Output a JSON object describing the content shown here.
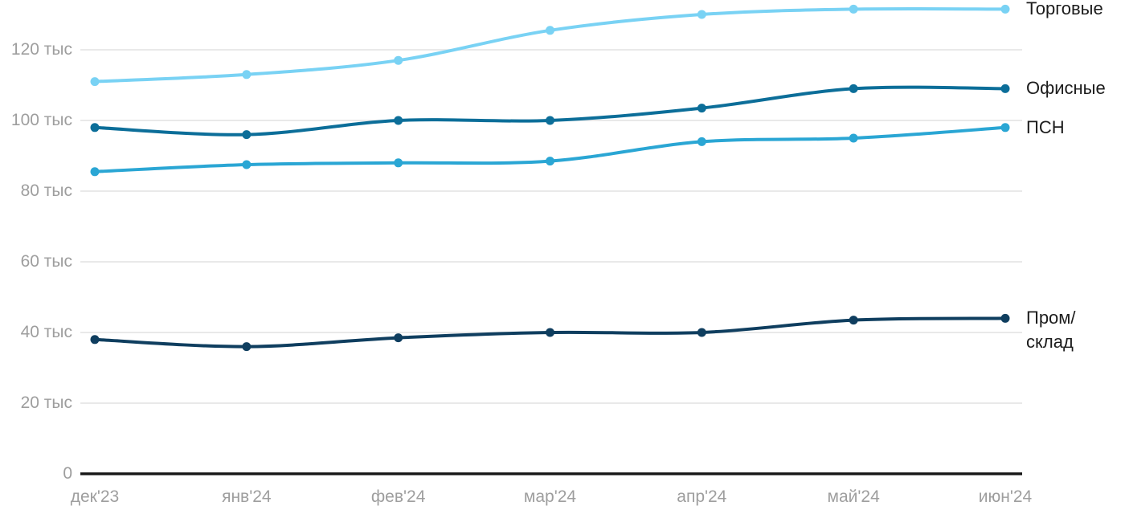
{
  "chart_data": {
    "type": "line",
    "title": "",
    "x": [
      "дек'23",
      "янв'24",
      "фев'24",
      "мар'24",
      "апр'24",
      "май'24",
      "июн'24"
    ],
    "y_ticks": [
      {
        "value": 0,
        "label": "0"
      },
      {
        "value": 20,
        "label": "20 тыс"
      },
      {
        "value": 40,
        "label": "40 тыс"
      },
      {
        "value": 60,
        "label": "60 тыс"
      },
      {
        "value": 80,
        "label": "80 тыс"
      },
      {
        "value": 100,
        "label": "100 тыс"
      },
      {
        "value": 120,
        "label": "120 тыс"
      }
    ],
    "ylim": [
      0,
      133
    ],
    "unit": "тыс",
    "grid": true,
    "legend_position": "right-of-line-end",
    "series": [
      {
        "id": "torgovye",
        "name": "Торговые",
        "label": "Торговые",
        "color": "#79D2F4",
        "values": [
          111,
          113,
          117,
          125.5,
          130,
          131.5,
          131.5
        ]
      },
      {
        "id": "ofisnye",
        "name": "Офисные",
        "label": "Офисные",
        "color": "#0C6E99",
        "values": [
          98,
          96,
          100,
          100,
          103.5,
          109,
          109
        ]
      },
      {
        "id": "psn",
        "name": "ПСН",
        "label": "ПСН",
        "color": "#2AA6D4",
        "values": [
          85.5,
          87.5,
          88,
          88.5,
          94,
          95,
          98
        ]
      },
      {
        "id": "prom-sklad",
        "name": "Пром/склад",
        "label": "Пром/\nсклад",
        "color": "#0F3E5F",
        "values": [
          38,
          36,
          38.5,
          40,
          40,
          43.5,
          44
        ]
      }
    ],
    "colors": {
      "grid": "#E9E9E9",
      "axis": "#1A1A1A",
      "tick_text": "#9E9E9E",
      "legend_text": "#1C1C1C",
      "background": "#FFFFFF"
    }
  }
}
